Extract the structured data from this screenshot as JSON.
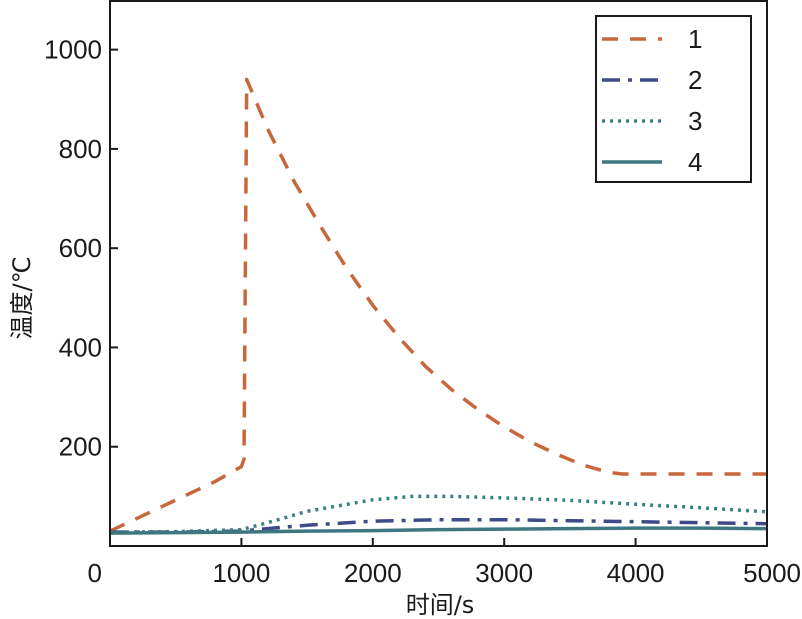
{
  "chart_data": {
    "type": "line",
    "title": "",
    "xlabel": "时间/s",
    "ylabel": "温度/℃",
    "xlim": [
      0,
      5000
    ],
    "ylim": [
      0,
      1100
    ],
    "xticks": [
      0,
      1000,
      2000,
      3000,
      4000,
      5000
    ],
    "yticks": [
      200,
      400,
      600,
      800,
      1000
    ],
    "grid": false,
    "legend_position": "top-right",
    "series": [
      {
        "name": "1",
        "color": "#c8663c",
        "style": "dashed",
        "x": [
          0,
          200,
          400,
          600,
          800,
          1000,
          1020,
          1040,
          1200,
          1400,
          1600,
          1800,
          2000,
          2200,
          2400,
          2600,
          2800,
          3000,
          3200,
          3400,
          3600,
          3800,
          3900,
          4000,
          4500,
          5000
        ],
        "y": [
          30,
          55,
          80,
          105,
          130,
          160,
          175,
          940,
          840,
          735,
          645,
          560,
          485,
          420,
          362,
          315,
          275,
          240,
          210,
          185,
          163,
          148,
          145,
          145,
          145,
          145
        ]
      },
      {
        "name": "2",
        "color": "#3e4b8a",
        "style": "dashdot",
        "x": [
          0,
          500,
          1000,
          1200,
          1500,
          2000,
          2500,
          3000,
          3500,
          4000,
          4500,
          5000
        ],
        "y": [
          28,
          28,
          30,
          35,
          42,
          50,
          53,
          53,
          51,
          49,
          47,
          45
        ]
      },
      {
        "name": "3",
        "color": "#3c8088",
        "style": "dotted",
        "x": [
          0,
          500,
          1000,
          1200,
          1500,
          2000,
          2300,
          2600,
          3000,
          3500,
          4000,
          4500,
          5000
        ],
        "y": [
          28,
          29,
          33,
          47,
          70,
          93,
          100,
          100,
          97,
          92,
          84,
          77,
          69
        ]
      },
      {
        "name": "4",
        "color": "#3f7780",
        "style": "solid",
        "x": [
          0,
          500,
          1000,
          1500,
          2000,
          2500,
          3000,
          3500,
          4000,
          4500,
          5000
        ],
        "y": [
          26,
          27,
          28,
          30,
          31,
          33,
          34,
          35,
          36,
          36,
          35
        ]
      }
    ]
  }
}
